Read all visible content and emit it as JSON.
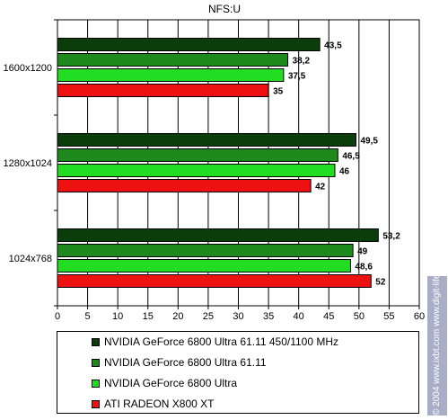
{
  "chart_data": {
    "type": "bar",
    "orientation": "horizontal",
    "title": "NFS:U",
    "categories": [
      "1600x1200",
      "1280x1024",
      "1024x768"
    ],
    "series": [
      {
        "name": "NVIDIA GeForce 6800 Ultra 61.11 450/1100 MHz",
        "color": "#0b3d0b",
        "values": [
          43.5,
          49.5,
          53.2
        ],
        "labels": [
          "43,5",
          "49,5",
          "53,2"
        ]
      },
      {
        "name": "NVIDIA GeForce 6800 Ultra 61.11",
        "color": "#1e8a1e",
        "values": [
          38.2,
          46.5,
          49
        ],
        "labels": [
          "38,2",
          "46,5",
          "49"
        ]
      },
      {
        "name": "NVIDIA GeForce 6800 Ultra",
        "color": "#22dd22",
        "values": [
          37.5,
          46,
          48.6
        ],
        "labels": [
          "37,5",
          "46",
          "48,6"
        ]
      },
      {
        "name": "ATI RADEON X800 XT",
        "color": "#ee1111",
        "values": [
          35,
          42,
          52
        ],
        "labels": [
          "35",
          "42",
          "52"
        ]
      }
    ],
    "xlim": [
      0,
      60
    ],
    "xticks": [
      0,
      5,
      10,
      15,
      20,
      25,
      30,
      35,
      40,
      45,
      50,
      55,
      60
    ],
    "grid": true,
    "legend_position": "bottom"
  },
  "watermark": "© 2004 www.ixbt.com www.digit-life.com"
}
